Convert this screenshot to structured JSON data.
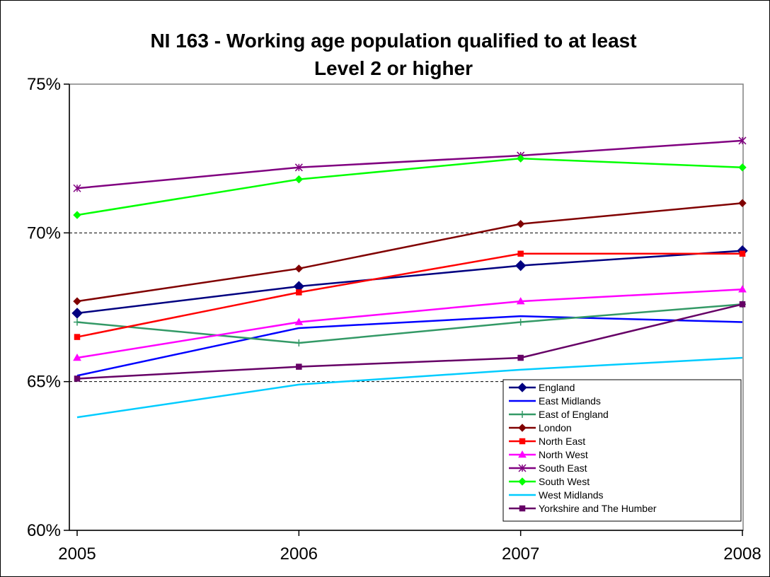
{
  "chart_data": {
    "type": "line",
    "title": [
      "NI 163 - Working age population qualified to at least",
      "Level 2 or higher"
    ],
    "xlabel": "",
    "ylabel": "",
    "x": [
      "2005",
      "2006",
      "2007",
      "2008"
    ],
    "ylim": [
      0.6,
      0.75
    ],
    "yticks": [
      0.6,
      0.65,
      0.7,
      0.75
    ],
    "ytick_labels": [
      "60%",
      "65%",
      "70%",
      "75%"
    ],
    "grid": "dashed at 65% and 70%",
    "legend_position": "bottom-right",
    "series": [
      {
        "name": "England",
        "color": "#000080",
        "marker": "diamond",
        "values": [
          0.673,
          0.682,
          0.689,
          0.694
        ]
      },
      {
        "name": "East Midlands",
        "color": "#0000FF",
        "marker": "none",
        "values": [
          0.652,
          0.668,
          0.672,
          0.67
        ]
      },
      {
        "name": "East of England",
        "color": "#339966",
        "marker": "plus",
        "values": [
          0.67,
          0.663,
          0.67,
          0.676
        ]
      },
      {
        "name": "London",
        "color": "#800000",
        "marker": "diamond",
        "values": [
          0.677,
          0.688,
          0.703,
          0.71
        ]
      },
      {
        "name": "North East",
        "color": "#FF0000",
        "marker": "square",
        "values": [
          0.665,
          0.68,
          0.693,
          0.693
        ]
      },
      {
        "name": "North West",
        "color": "#FF00FF",
        "marker": "triangle",
        "values": [
          0.658,
          0.67,
          0.677,
          0.681
        ]
      },
      {
        "name": "South East",
        "color": "#800080",
        "marker": "star",
        "values": [
          0.715,
          0.722,
          0.726,
          0.731
        ]
      },
      {
        "name": "South West",
        "color": "#00FF00",
        "marker": "diamond",
        "values": [
          0.706,
          0.718,
          0.725,
          0.722
        ]
      },
      {
        "name": "West Midlands",
        "color": "#00CCFF",
        "marker": "none",
        "values": [
          0.638,
          0.649,
          0.654,
          0.658
        ]
      },
      {
        "name": "Yorkshire and The Humber",
        "color": "#660066",
        "marker": "square",
        "values": [
          0.651,
          0.655,
          0.658,
          0.676
        ]
      }
    ]
  }
}
